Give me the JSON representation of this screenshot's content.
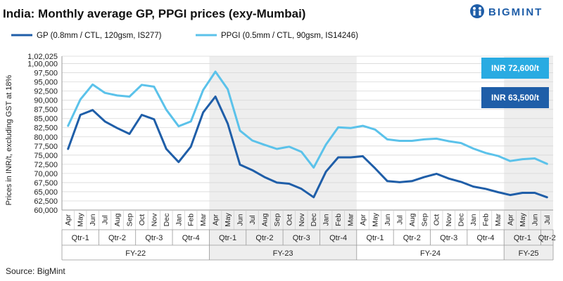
{
  "brand": {
    "name": "BIGMINT",
    "color": "#1f5ea8"
  },
  "source": "Source: BigMint",
  "annotations": [
    {
      "label": "INR 72,600/t",
      "series": "PPGI (0.5mm / CTL, 90gsm, IS14246)",
      "color": "#29abe2"
    },
    {
      "label": "INR 63,500/t",
      "series": "GP (0.8mm / CTL, 120gsm, IS277)",
      "color": "#1f5ea8"
    }
  ],
  "chart_data": {
    "type": "line",
    "title": "India: Monthly average GP, PPGI prices (exy-Mumbai)",
    "ylabel": "Prices in INR/t, excluding GST at 18%",
    "ylim": [
      60000,
      102025
    ],
    "yticks": [
      "60,000",
      "62,500",
      "65,000",
      "67,500",
      "70,000",
      "72,500",
      "75,000",
      "77,500",
      "80,000",
      "82,500",
      "85,000",
      "87,500",
      "90,000",
      "92,500",
      "95,000",
      "97,500",
      "1,00,000",
      "1,02,025"
    ],
    "ytick_values": [
      60000,
      62500,
      65000,
      67500,
      70000,
      72500,
      75000,
      77500,
      80000,
      82500,
      85000,
      87500,
      90000,
      92500,
      95000,
      97500,
      100000,
      102025
    ],
    "categories": [
      "Apr",
      "May",
      "Jun",
      "Jul",
      "Aug",
      "Sep",
      "Oct",
      "Nov",
      "Dec",
      "Jan",
      "Feb",
      "Mar",
      "Apr",
      "May",
      "Jun",
      "Jul",
      "Aug",
      "Sep",
      "Oct",
      "Nov",
      "Dec",
      "Jan",
      "Feb",
      "Mar",
      "Apr",
      "May",
      "Jun",
      "Jul",
      "Aug",
      "Sep",
      "Oct",
      "Nov",
      "Dec",
      "Jan",
      "Feb",
      "Mar",
      "Apr",
      "May",
      "Jun",
      "Jul"
    ],
    "quarters": [
      {
        "label": "Qtr-1",
        "start": 0,
        "end": 2
      },
      {
        "label": "Qtr-2",
        "start": 3,
        "end": 5
      },
      {
        "label": "Qtr-3",
        "start": 6,
        "end": 8
      },
      {
        "label": "Qtr-4",
        "start": 9,
        "end": 11
      },
      {
        "label": "Qtr-1",
        "start": 12,
        "end": 14
      },
      {
        "label": "Qtr-2",
        "start": 15,
        "end": 17
      },
      {
        "label": "Qtr-3",
        "start": 18,
        "end": 20
      },
      {
        "label": "Qtr-4",
        "start": 21,
        "end": 23
      },
      {
        "label": "Qtr-1",
        "start": 24,
        "end": 26
      },
      {
        "label": "Qtr-2",
        "start": 27,
        "end": 29
      },
      {
        "label": "Qtr-3",
        "start": 30,
        "end": 32
      },
      {
        "label": "Qtr-4",
        "start": 33,
        "end": 35
      },
      {
        "label": "Qtr-1",
        "start": 36,
        "end": 38
      },
      {
        "label": "Qtr-2",
        "start": 39,
        "end": 39
      }
    ],
    "fiscal_years": [
      {
        "label": "FY-22",
        "start": 0,
        "end": 11
      },
      {
        "label": "FY-23",
        "start": 12,
        "end": 23
      },
      {
        "label": "FY-24",
        "start": 24,
        "end": 35
      },
      {
        "label": "FY-25",
        "start": 36,
        "end": 39
      }
    ],
    "series": [
      {
        "name": "GP (0.8mm / CTL, 120gsm, IS277)",
        "color": "#1f5ea8",
        "values": [
          76700,
          86000,
          87300,
          84200,
          82400,
          80800,
          86000,
          84800,
          76700,
          73100,
          77300,
          86700,
          91000,
          83600,
          72400,
          70900,
          69000,
          67500,
          67200,
          65800,
          63500,
          70500,
          74400,
          74400,
          74700,
          71400,
          67900,
          67600,
          67900,
          69000,
          69900,
          68600,
          67700,
          66400,
          65800,
          64900,
          64100,
          64700,
          64700,
          63500
        ]
      },
      {
        "name": "PPGI (0.5mm / CTL, 90gsm, IS14246)",
        "color": "#5bc2ea",
        "values": [
          83000,
          90200,
          94300,
          92000,
          91300,
          91000,
          94200,
          93700,
          87400,
          82900,
          84200,
          92800,
          97800,
          93000,
          81700,
          79000,
          77800,
          76700,
          77300,
          75900,
          71600,
          77900,
          82600,
          82400,
          83000,
          82000,
          79300,
          78900,
          78900,
          79300,
          79500,
          78800,
          78300,
          76800,
          75600,
          74800,
          73400,
          73900,
          74100,
          72600
        ]
      }
    ]
  }
}
